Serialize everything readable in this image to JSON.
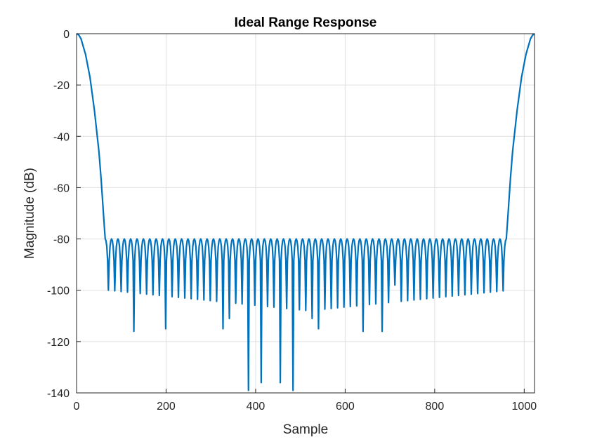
{
  "chart_data": {
    "type": "line",
    "title": "Ideal Range Response",
    "xlabel": "Sample",
    "ylabel": "Magnitude (dB)",
    "xlim": [
      0,
      1023
    ],
    "ylim": [
      -140,
      0
    ],
    "xticks": [
      0,
      200,
      400,
      600,
      800,
      1000
    ],
    "yticks": [
      0,
      -20,
      -40,
      -60,
      -80,
      -100,
      -120,
      -140
    ],
    "grid": true,
    "series": [
      {
        "color": "#0072BD",
        "sidelobe_level_db": -80,
        "mainlobe_edge_samples": [
          64,
          960
        ],
        "sidelobe_count": 63,
        "notable_nulls": [
          {
            "x": 123,
            "y": -116
          },
          {
            "x": 197,
            "y": -115
          },
          {
            "x": 330,
            "y": -115
          },
          {
            "x": 343,
            "y": -111
          },
          {
            "x": 379,
            "y": -139
          },
          {
            "x": 416,
            "y": -136
          },
          {
            "x": 453,
            "y": -136
          },
          {
            "x": 490,
            "y": -139
          },
          {
            "x": 527,
            "y": -111
          },
          {
            "x": 541,
            "y": -115
          },
          {
            "x": 635,
            "y": -116
          },
          {
            "x": 681,
            "y": -116
          },
          {
            "x": 709,
            "y": -104
          },
          {
            "x": 718,
            "y": -98
          }
        ],
        "points": [
          [
            0,
            0
          ],
          [
            5,
            -0.5
          ],
          [
            10,
            -2
          ],
          [
            20,
            -8
          ],
          [
            30,
            -17
          ],
          [
            40,
            -30
          ],
          [
            50,
            -46
          ],
          [
            55,
            -57
          ],
          [
            60,
            -70
          ],
          [
            64,
            -80
          ],
          [
            960,
            -80
          ],
          [
            964,
            -70
          ],
          [
            969,
            -57
          ],
          [
            974,
            -46
          ],
          [
            984,
            -30
          ],
          [
            994,
            -17
          ],
          [
            1004,
            -8
          ],
          [
            1014,
            -2
          ],
          [
            1019,
            -0.5
          ],
          [
            1023,
            0
          ]
        ]
      }
    ]
  }
}
